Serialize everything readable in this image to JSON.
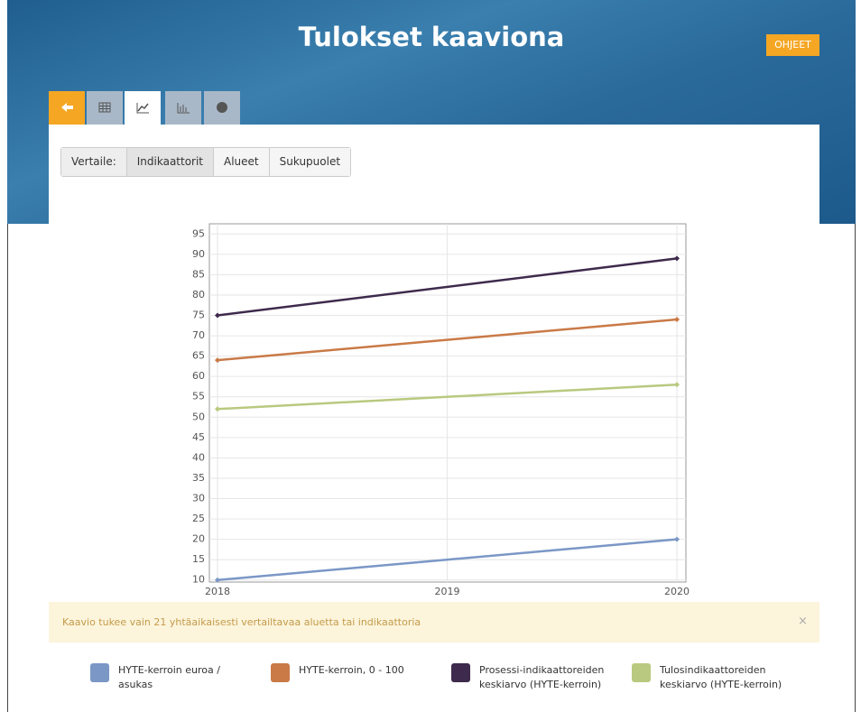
{
  "header": {
    "title": "Tulokset kaaviona",
    "help_button": "OHJEET"
  },
  "compare": {
    "label": "Vertaile:",
    "options": [
      "Indikaattorit",
      "Alueet",
      "Sukupuolet"
    ]
  },
  "chart_data": {
    "type": "line",
    "x": [
      2018,
      2020
    ],
    "xlim": [
      2018,
      2020
    ],
    "xticks": [
      2018,
      2019,
      2020
    ],
    "ylim": [
      9.5,
      97.5
    ],
    "yticks": [
      10,
      15,
      20,
      25,
      30,
      35,
      40,
      45,
      50,
      55,
      60,
      65,
      70,
      75,
      80,
      85,
      90,
      95
    ],
    "grid": true,
    "series": [
      {
        "name": "HYTE-kerroin euroa / asukas",
        "color": "#7b97c6",
        "values": [
          10,
          20
        ]
      },
      {
        "name": "HYTE-kerroin, 0 - 100",
        "color": "#c97a47",
        "values": [
          64,
          74
        ]
      },
      {
        "name": "Prosessi-indikaattoreiden keskiarvo (HYTE-kerroin)",
        "color": "#3e2a4c",
        "values": [
          75,
          89
        ]
      },
      {
        "name": "Tulosindikaattoreiden keskiarvo (HYTE-kerroin)",
        "color": "#b9c97f",
        "values": [
          52,
          58
        ]
      }
    ]
  },
  "notice": {
    "text": "Kaavio tukee vain 21 yhtäaikaisesti vertailtavaa aluetta tai indikaattoria",
    "close": "×"
  }
}
